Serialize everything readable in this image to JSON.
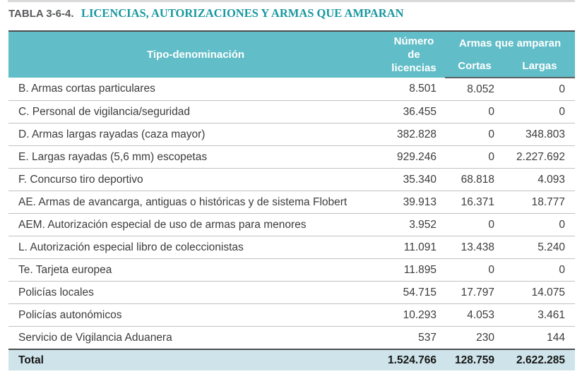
{
  "title": {
    "label": "TABLA 3-6-4.",
    "heading": "LICENCIAS, AUTORIZACIONES Y ARMAS QUE AMPARAN"
  },
  "table": {
    "columns": {
      "tipo": "Tipo-denominación",
      "licencias": "Número\nde\nlicencias",
      "group": "Armas que amparan",
      "cortas": "Cortas",
      "largas": "Largas"
    },
    "rows": [
      {
        "tipo": "B. Armas cortas particulares",
        "licencias": "8.501",
        "cortas": "8.052",
        "largas": "0"
      },
      {
        "tipo": "C. Personal de vigilancia/seguridad",
        "licencias": "36.455",
        "cortas": "0",
        "largas": "0"
      },
      {
        "tipo": "D. Armas largas rayadas (caza mayor)",
        "licencias": "382.828",
        "cortas": "0",
        "largas": "348.803"
      },
      {
        "tipo": "E. Largas rayadas (5,6 mm) escopetas",
        "licencias": "929.246",
        "cortas": "0",
        "largas": "2.227.692"
      },
      {
        "tipo": "F. Concurso tiro deportivo",
        "licencias": "35.340",
        "cortas": "68.818",
        "largas": "4.093"
      },
      {
        "tipo": "AE. Armas de avancarga, antiguas o históricas y de sistema Flobert",
        "licencias": "39.913",
        "cortas": "16.371",
        "largas": "18.777"
      },
      {
        "tipo": "AEM. Autorización especial de uso de armas para menores",
        "licencias": "3.952",
        "cortas": "0",
        "largas": "0"
      },
      {
        "tipo": "L. Autorización especial libro de coleccionistas",
        "licencias": "11.091",
        "cortas": "13.438",
        "largas": "5.240"
      },
      {
        "tipo": "Te. Tarjeta europea",
        "licencias": "11.895",
        "cortas": "0",
        "largas": "0"
      },
      {
        "tipo": "Policías locales",
        "licencias": "54.715",
        "cortas": "17.797",
        "largas": "14.075"
      },
      {
        "tipo": "Policías autonómicos",
        "licencias": "10.293",
        "cortas": "4.053",
        "largas": "3.461"
      },
      {
        "tipo": "Servicio de Vigilancia Aduanera",
        "licencias": "537",
        "cortas": "230",
        "largas": "144"
      }
    ],
    "total": {
      "tipo": "Total",
      "licencias": "1.524.766",
      "cortas": "128.759",
      "largas": "2.622.285"
    }
  },
  "colors": {
    "header_bg": "#61bdc7",
    "total_row_bg": "#cfe4ea",
    "title_accent": "#17989f",
    "title_label": "#58595b",
    "dark_border": "#4b4e50",
    "row_separator": "#bfc1c3",
    "body_text": "#3c3c3c"
  }
}
